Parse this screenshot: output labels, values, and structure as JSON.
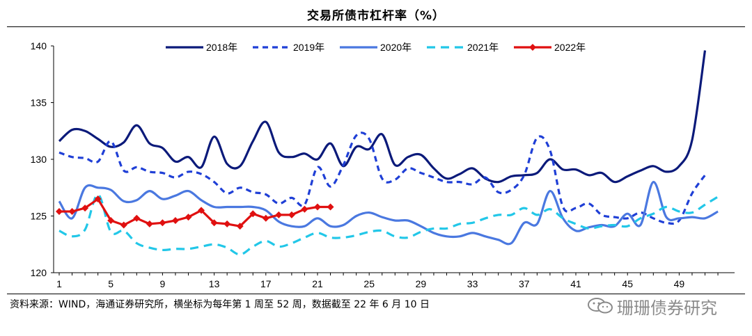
{
  "header": {
    "title": "交易所债市杠杆率（%）"
  },
  "footer": {
    "source": "资料来源：WIND，海通证券研究所，横坐标为每年第 1 周至 52 周，数据截至 22 年 6 月 10 日",
    "watermark": "珊珊债券研究"
  },
  "chart_data": {
    "type": "line",
    "title": "交易所债市杠杆率（%）",
    "xlabel": "",
    "ylabel": "",
    "xlim": [
      1,
      52
    ],
    "ylim": [
      120,
      140
    ],
    "x_ticks": [
      1,
      5,
      9,
      13,
      17,
      21,
      25,
      29,
      33,
      37,
      41,
      45,
      49
    ],
    "y_ticks": [
      120,
      125,
      130,
      135,
      140
    ],
    "grid": false,
    "legend_position": "top",
    "series": [
      {
        "name": "2018年",
        "color": "#0b1a7a",
        "dash": "solid",
        "marker": "none",
        "values": [
          131.6,
          132.6,
          132.5,
          131.8,
          131.1,
          131.5,
          133.0,
          131.4,
          131.0,
          129.8,
          130.2,
          129.3,
          132.0,
          129.6,
          129.4,
          131.6,
          133.3,
          130.6,
          130.2,
          130.5,
          130.0,
          131.4,
          129.4,
          131.1,
          130.9,
          132.2,
          129.5,
          130.2,
          130.4,
          129.2,
          128.3,
          128.7,
          129.2,
          128.3,
          128.0,
          128.5,
          128.6,
          128.8,
          130.0,
          129.1,
          129.1,
          128.6,
          128.8,
          128.0,
          128.5,
          129.0,
          129.4,
          128.9,
          129.4,
          131.7,
          139.6
        ]
      },
      {
        "name": "2019年",
        "color": "#1f3fd6",
        "dash": "8,6",
        "marker": "none",
        "values": [
          130.6,
          130.2,
          130.1,
          129.8,
          131.6,
          129.0,
          129.3,
          128.9,
          128.8,
          128.4,
          128.9,
          128.7,
          128.0,
          127.0,
          127.5,
          127.1,
          126.9,
          126.1,
          126.6,
          126.0,
          129.3,
          127.6,
          129.5,
          132.1,
          131.8,
          128.3,
          128.2,
          129.2,
          128.8,
          128.4,
          128.0,
          128.0,
          127.8,
          128.4,
          127.1,
          127.3,
          128.6,
          131.9,
          130.8,
          125.8,
          125.7,
          126.1,
          125.1,
          124.9,
          124.8,
          125.3,
          124.8,
          124.4,
          124.6,
          127.0,
          128.6
        ]
      },
      {
        "name": "2020年",
        "color": "#4a78e0",
        "dash": "solid",
        "marker": "none",
        "values": [
          126.3,
          124.8,
          127.5,
          127.5,
          127.3,
          126.3,
          126.4,
          127.2,
          126.5,
          126.8,
          127.2,
          126.4,
          125.8,
          125.8,
          125.8,
          125.8,
          125.5,
          124.5,
          124.1,
          124.1,
          124.8,
          124.1,
          124.2,
          125.0,
          125.3,
          124.9,
          124.6,
          124.6,
          124.1,
          123.5,
          123.2,
          123.2,
          123.5,
          123.2,
          122.9,
          122.6,
          124.4,
          124.3,
          127.2,
          124.8,
          123.7,
          124.0,
          124.2,
          124.1,
          125.2,
          124.2,
          128.0,
          124.9,
          124.8,
          124.9,
          124.8,
          125.4
        ]
      },
      {
        "name": "2021年",
        "color": "#22c7e8",
        "dash": "12,8",
        "marker": "none",
        "values": [
          123.7,
          123.2,
          123.8,
          126.9,
          123.6,
          123.7,
          122.6,
          122.2,
          122.0,
          122.1,
          122.1,
          122.3,
          122.5,
          122.2,
          121.6,
          122.3,
          122.8,
          122.3,
          122.6,
          123.1,
          123.5,
          123.1,
          123.1,
          123.3,
          123.6,
          123.7,
          123.2,
          123.1,
          123.6,
          123.9,
          123.9,
          124.3,
          124.4,
          124.8,
          125.1,
          125.1,
          125.7,
          125.1,
          125.6,
          124.8,
          124.3,
          123.9,
          124.1,
          124.2,
          124.1,
          124.8,
          125.2,
          125.8,
          125.4,
          125.3,
          126.0,
          126.7
        ]
      },
      {
        "name": "2022年",
        "color": "#e01010",
        "dash": "solid",
        "marker": "diamond",
        "values": [
          125.4,
          125.4,
          125.7,
          126.5,
          124.6,
          124.2,
          124.8,
          124.3,
          124.4,
          124.6,
          124.9,
          125.5,
          124.4,
          124.3,
          124.1,
          125.2,
          124.8,
          125.1,
          125.1,
          125.6,
          125.8,
          125.8
        ]
      }
    ]
  }
}
